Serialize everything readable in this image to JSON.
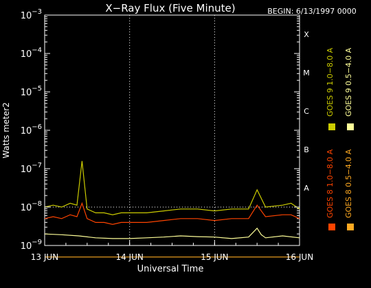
{
  "chart_data": {
    "type": "line",
    "title": "X−Ray Flux (Five Minute)",
    "begin_label": "BEGIN: 6/13/1997 0000",
    "xlabel": "Universal Time",
    "ylabel": "Watts meter2",
    "y_scale": "log",
    "ylim": [
      1e-09,
      0.001
    ],
    "x_unit": "days since 13 JUN 1997 00:00 UT",
    "xlim": [
      0,
      3
    ],
    "x_ticks": [
      {
        "value": 0,
        "label": "13 JUN"
      },
      {
        "value": 1,
        "label": "14 JUN"
      },
      {
        "value": 2,
        "label": "15 JUN"
      },
      {
        "value": 3,
        "label": "16 JUN"
      }
    ],
    "y_ticks": [
      {
        "exp": -9
      },
      {
        "exp": -8
      },
      {
        "exp": -7
      },
      {
        "exp": -6
      },
      {
        "exp": -5
      },
      {
        "exp": -4
      },
      {
        "exp": -3
      }
    ],
    "flare_classes": [
      {
        "label": "A",
        "exp": -7.5
      },
      {
        "label": "B",
        "exp": -6.5
      },
      {
        "label": "C",
        "exp": -5.5
      },
      {
        "label": "M",
        "exp": -4.5
      },
      {
        "label": "X",
        "exp": -3.5
      }
    ],
    "grid": {
      "vertical_dotted": true,
      "horizontal_dotted_at_exp": [
        -8
      ]
    },
    "legend_position": "right-vertical",
    "series": [
      {
        "name": "GOES 8 1.0−8.0 A",
        "color": "#ff4400",
        "x": [
          0,
          0.1,
          0.2,
          0.3,
          0.38,
          0.44,
          0.5,
          0.6,
          0.7,
          0.8,
          0.9,
          1.0,
          1.2,
          1.4,
          1.6,
          1.8,
          2.0,
          2.2,
          2.4,
          2.5,
          2.6,
          2.8,
          2.9,
          3.0
        ],
        "y_exp": [
          -8.3,
          -8.25,
          -8.3,
          -8.2,
          -8.25,
          -7.9,
          -8.3,
          -8.4,
          -8.4,
          -8.45,
          -8.4,
          -8.4,
          -8.4,
          -8.35,
          -8.3,
          -8.3,
          -8.35,
          -8.3,
          -8.3,
          -7.95,
          -8.25,
          -8.2,
          -8.2,
          -8.3
        ]
      },
      {
        "name": "GOES 8 0.5−4.0 A",
        "color": "#ffaa22",
        "x": [
          0,
          0.38,
          0.4,
          0.43,
          0.6,
          1.0,
          1.5,
          2.0,
          2.5,
          3.0
        ],
        "y_exp": [
          -9.3,
          -9.3,
          -9.3,
          -9.3,
          -9.3,
          -9.3,
          -9.3,
          -9.3,
          -9.3,
          -9.3
        ]
      },
      {
        "name": "GOES 9 0.5−4.0 A",
        "color": "#ffff99",
        "x": [
          0,
          0.2,
          0.4,
          0.6,
          0.8,
          1.0,
          1.2,
          1.4,
          1.6,
          1.8,
          2.0,
          2.2,
          2.4,
          2.5,
          2.55,
          2.6,
          2.8,
          3.0
        ],
        "y_exp": [
          -8.7,
          -8.72,
          -8.75,
          -8.8,
          -8.82,
          -8.82,
          -8.8,
          -8.78,
          -8.75,
          -8.77,
          -8.78,
          -8.82,
          -8.78,
          -8.55,
          -8.72,
          -8.8,
          -8.75,
          -8.8
        ]
      },
      {
        "name": "GOES 9 1.0−8.0 A",
        "color": "#cccc00",
        "x": [
          0,
          0.1,
          0.2,
          0.3,
          0.38,
          0.44,
          0.5,
          0.6,
          0.7,
          0.8,
          0.9,
          1.0,
          1.2,
          1.4,
          1.6,
          1.8,
          2.0,
          2.2,
          2.4,
          2.5,
          2.6,
          2.8,
          2.9,
          3.0
        ],
        "y_exp": [
          -8.0,
          -7.95,
          -8.0,
          -7.9,
          -7.95,
          -6.8,
          -8.05,
          -8.15,
          -8.15,
          -8.2,
          -8.15,
          -8.15,
          -8.15,
          -8.1,
          -8.05,
          -8.05,
          -8.1,
          -8.05,
          -8.05,
          -7.55,
          -8.0,
          -7.95,
          -7.9,
          -8.05
        ]
      }
    ]
  }
}
